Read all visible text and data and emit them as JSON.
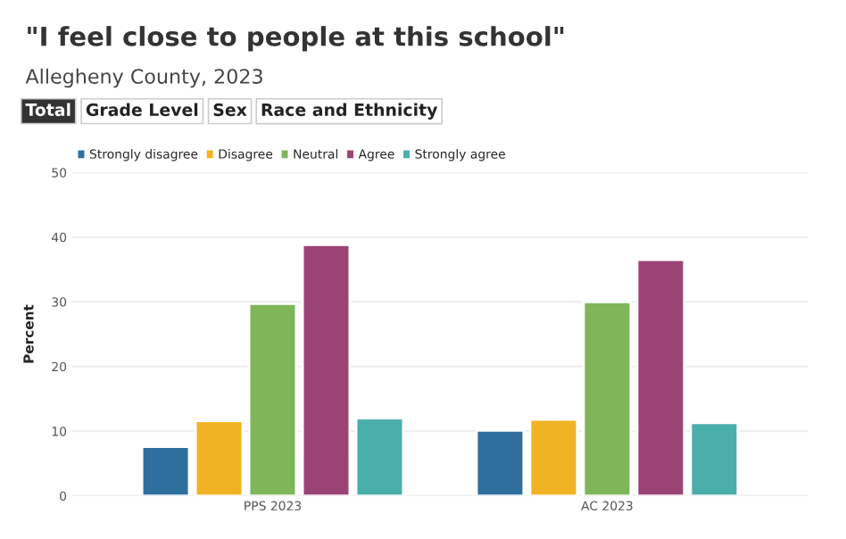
{
  "chart_data": {
    "type": "bar",
    "title": "\"I feel close to people at this school\"",
    "subtitle": "Allegheny County, 2023",
    "annotations": [
      "Total",
      "Grade Level",
      "Sex",
      "Race and Ethnicity"
    ],
    "ylabel": "Percent",
    "categories": [
      "PPS 2023",
      "AC 2023"
    ],
    "series": [
      {
        "name": "Strongly disagree",
        "color": "#2e6f9e",
        "values": [
          7.6,
          10.1
        ]
      },
      {
        "name": "Disagree",
        "color": "#f0b323",
        "values": [
          11.6,
          11.8
        ]
      },
      {
        "name": "Neutral",
        "color": "#7fb65a",
        "values": [
          29.7,
          30.0
        ]
      },
      {
        "name": "Agree",
        "color": "#9c4376",
        "values": [
          38.8,
          36.5
        ]
      },
      {
        "name": "Strongly agree",
        "color": "#4aaeab",
        "values": [
          12.0,
          11.3
        ]
      }
    ],
    "ylim": [
      0,
      50
    ],
    "yticks": [
      0,
      10,
      20,
      30,
      40,
      50
    ],
    "grid": "y",
    "legend": "top left"
  }
}
